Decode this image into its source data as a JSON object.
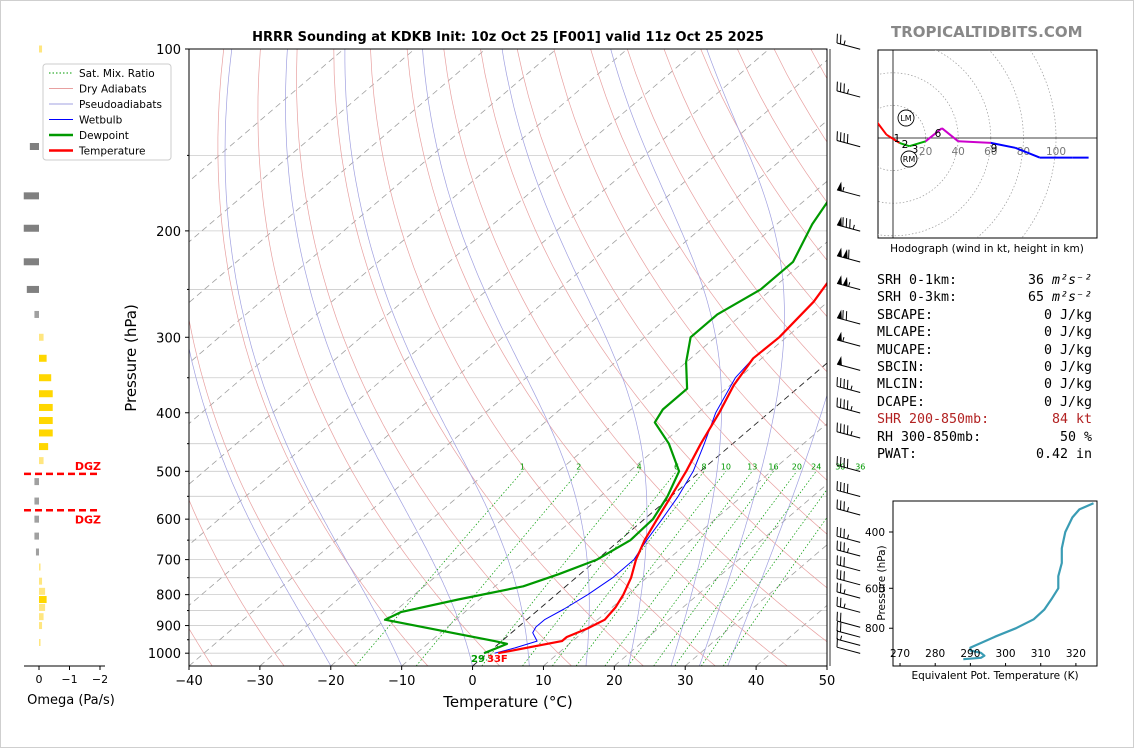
{
  "branding": "TROPICALTIDBITS.COM",
  "colors": {
    "temperature": "#ff0000",
    "dewpoint": "#009900",
    "wetbulb": "#0000ff",
    "dry_adiabats": "#e8a0a0",
    "pseudoadiabats": "#a0a0e0",
    "mixing_ratio": "#009900",
    "isotherms": "#a0a0a0",
    "dgz": "#ff0000",
    "theta_e": "#3a9cb4"
  },
  "chart_data": [
    {
      "type": "line",
      "subtype": "skew-t",
      "title": "HRRR Sounding at KDKB Init: 10z Oct 25 [F001] valid 11z Oct 25 2025",
      "xlabel": "Temperature (°C)",
      "ylabel": "Pressure (hPa)",
      "xlim": [
        -40,
        50
      ],
      "ylim": [
        1050,
        100
      ],
      "y_log": true,
      "x_ticks": [
        "−40",
        "−30",
        "−20",
        "−10",
        "0",
        "10",
        "20",
        "30",
        "40",
        "50"
      ],
      "y_ticks": [
        "100",
        "200",
        "300",
        "400",
        "500",
        "600",
        "700",
        "800",
        "900",
        "1000"
      ],
      "legend": [
        "Sat. Mix. Ratio",
        "Dry Adiabats",
        "Pseudoadiabats",
        "Wetbulb",
        "Dewpoint",
        "Temperature"
      ],
      "legend_position": "upper-left",
      "mixing_ratio_labels": [
        "1",
        "2",
        "4",
        "6",
        "8",
        "10",
        "13",
        "16",
        "20",
        "24",
        "30",
        "36"
      ],
      "surface_label": "29|33F",
      "series": [
        {
          "name": "Temperature",
          "points": [
            [
              1.5,
              1000
            ],
            [
              8.5,
              955
            ],
            [
              8.5,
              940
            ],
            [
              10,
              910
            ],
            [
              11,
              880
            ],
            [
              10.5,
              840
            ],
            [
              9.5,
              800
            ],
            [
              7.8,
              750
            ],
            [
              5.5,
              700
            ],
            [
              3.5,
              650
            ],
            [
              1.8,
              600
            ],
            [
              0,
              550
            ],
            [
              -2,
              500
            ],
            [
              -4.5,
              450
            ],
            [
              -7,
              400
            ],
            [
              -9.5,
              360
            ],
            [
              -11.2,
              325
            ],
            [
              -11,
              300
            ],
            [
              -12,
              262
            ],
            [
              -14.5,
              225
            ],
            [
              -14.5,
              200
            ],
            [
              -10.5,
              170
            ],
            [
              -6,
              145
            ],
            [
              -4,
              125
            ],
            [
              2,
              100
            ]
          ]
        },
        {
          "name": "Dewpoint",
          "points": [
            [
              -0.5,
              1000
            ],
            [
              0.5,
              980
            ],
            [
              1.2,
              965
            ],
            [
              -1,
              955
            ],
            [
              -20,
              880
            ],
            [
              -19,
              855
            ],
            [
              -13,
              815
            ],
            [
              -6,
              775
            ],
            [
              -3,
              740
            ],
            [
              0,
              700
            ],
            [
              1.5,
              650
            ],
            [
              1.2,
              600
            ],
            [
              -0.5,
              550
            ],
            [
              -3,
              500
            ],
            [
              -9,
              450
            ],
            [
              -14.5,
              415
            ],
            [
              -15.5,
              395
            ],
            [
              -15.5,
              365
            ],
            [
              -20,
              330
            ],
            [
              -23.5,
              300
            ],
            [
              -23.5,
              275
            ],
            [
              -21.5,
              250
            ],
            [
              -21.5,
              225
            ],
            [
              -25,
              195
            ],
            [
              -28,
              165
            ],
            [
              -30.5,
              145
            ],
            [
              -24.5,
              100
            ]
          ]
        },
        {
          "name": "Wetbulb",
          "points": [
            [
              1,
              1000
            ],
            [
              3,
              980
            ],
            [
              5,
              955
            ],
            [
              3,
              925
            ],
            [
              2.5,
              905
            ],
            [
              2.5,
              880
            ],
            [
              3.5,
              845
            ],
            [
              4.5,
              800
            ],
            [
              5.2,
              750
            ],
            [
              5.2,
              700
            ],
            [
              3.8,
              650
            ],
            [
              2.5,
              600
            ],
            [
              1,
              550
            ],
            [
              -1,
              500
            ],
            [
              -4,
              450
            ],
            [
              -7.5,
              400
            ],
            [
              -10.5,
              350
            ],
            [
              -11.2,
              325
            ],
            [
              -11,
              300
            ],
            [
              -12,
              262
            ],
            [
              -14.5,
              225
            ],
            [
              -14.5,
              200
            ]
          ]
        }
      ],
      "wind_barbs_kt": [
        [
          1000,
          10
        ],
        [
          970,
          15
        ],
        [
          940,
          20
        ],
        [
          905,
          20
        ],
        [
          855,
          25
        ],
        [
          810,
          25
        ],
        [
          770,
          30
        ],
        [
          730,
          30
        ],
        [
          690,
          35
        ],
        [
          655,
          35
        ],
        [
          590,
          35
        ],
        [
          550,
          40
        ],
        [
          500,
          40
        ],
        [
          440,
          45
        ],
        [
          400,
          45
        ],
        [
          370,
          45
        ],
        [
          340,
          50
        ],
        [
          310,
          55
        ],
        [
          285,
          70
        ],
        [
          250,
          105
        ],
        [
          225,
          110
        ],
        [
          200,
          85
        ],
        [
          175,
          55
        ],
        [
          145,
          40
        ],
        [
          120,
          35
        ],
        [
          100,
          25
        ]
      ]
    },
    {
      "type": "line",
      "subtype": "omega-profile",
      "xlabel": "Omega (Pa/s)",
      "x_ticks": [
        "0",
        "−1",
        "−2"
      ],
      "xlim": [
        0.3,
        -2.6
      ],
      "dgz_label": "DGZ",
      "dgz_pressures": [
        505,
        580
      ],
      "bars": [
        [
          100,
          -0.1
        ],
        [
          145,
          0.3
        ],
        [
          175,
          0.5
        ],
        [
          198,
          0.5
        ],
        [
          225,
          0.5
        ],
        [
          250,
          0.4
        ],
        [
          275,
          0.15
        ],
        [
          300,
          -0.15
        ],
        [
          325,
          -0.25
        ],
        [
          350,
          -0.4
        ],
        [
          372,
          -0.45
        ],
        [
          392,
          -0.45
        ],
        [
          412,
          -0.45
        ],
        [
          432,
          -0.45
        ],
        [
          455,
          -0.3
        ],
        [
          480,
          -0.15
        ],
        [
          520,
          0.15
        ],
        [
          560,
          0.15
        ],
        [
          600,
          0.15
        ],
        [
          640,
          0.15
        ],
        [
          680,
          0.1
        ],
        [
          720,
          -0.05
        ],
        [
          760,
          -0.1
        ],
        [
          790,
          -0.2
        ],
        [
          815,
          -0.25
        ],
        [
          840,
          -0.2
        ],
        [
          870,
          -0.15
        ],
        [
          900,
          -0.1
        ],
        [
          960,
          -0.05
        ]
      ]
    },
    {
      "type": "line",
      "subtype": "hodograph",
      "xlabel": "Hodograph (wind in kt, height in km)",
      "ring_labels": [
        "20",
        "40",
        "60",
        "80",
        "100"
      ],
      "point_labels": [
        "1",
        "2",
        "3",
        "6",
        "9"
      ],
      "storm_markers": [
        "LM",
        "RM"
      ],
      "uv_kt": [
        [
          -10,
          10
        ],
        [
          -4,
          2
        ],
        [
          4,
          -3
        ],
        [
          10,
          -5
        ],
        [
          20,
          -2
        ],
        [
          30,
          6
        ],
        [
          40,
          -2
        ],
        [
          60,
          -3
        ],
        [
          75,
          -6
        ],
        [
          90,
          -12
        ],
        [
          100,
          -12
        ],
        [
          110,
          -12
        ],
        [
          120,
          -12
        ]
      ]
    },
    {
      "type": "line",
      "subtype": "theta-e-profile",
      "xlabel": "Equivalent Pot. Temperature (K)",
      "ylabel": "Pressure (hPa)",
      "x_ticks": [
        "270",
        "280",
        "290",
        "300",
        "310",
        "320"
      ],
      "y_ticks": [
        "400",
        "600",
        "800"
      ],
      "xlim": [
        268,
        326
      ],
      "ylim": [
        1050,
        320
      ],
      "points": [
        [
          288,
          1000
        ],
        [
          293,
          990
        ],
        [
          294,
          975
        ],
        [
          293,
          955
        ],
        [
          290,
          940
        ],
        [
          290,
          920
        ],
        [
          293,
          890
        ],
        [
          297,
          850
        ],
        [
          303,
          800
        ],
        [
          308,
          750
        ],
        [
          311,
          700
        ],
        [
          313,
          650
        ],
        [
          315,
          600
        ],
        [
          315,
          550
        ],
        [
          316,
          500
        ],
        [
          316,
          450
        ],
        [
          317,
          400
        ],
        [
          319,
          360
        ],
        [
          321,
          340
        ],
        [
          325,
          325
        ]
      ]
    }
  ],
  "stats": [
    {
      "label": "SRH 0-1km:",
      "value": "36 m²s⁻²",
      "num": "36",
      "unit": "m²s⁻²"
    },
    {
      "label": "SRH 0-3km:",
      "value": "65 m²s⁻²",
      "num": "65",
      "unit": "m²s⁻²"
    },
    {
      "label": "SBCAPE:",
      "value": "0 J/kg"
    },
    {
      "label": "MLCAPE:",
      "value": "0 J/kg"
    },
    {
      "label": "MUCAPE:",
      "value": "0 J/kg"
    },
    {
      "label": "SBCIN:",
      "value": "0 J/kg"
    },
    {
      "label": "MLCIN:",
      "value": "0 J/kg"
    },
    {
      "label": "DCAPE:",
      "value": "0 J/kg"
    },
    {
      "label": "SHR 200-850mb:",
      "value": "84 kt",
      "highlight": true
    },
    {
      "label": "RH 300-850mb:",
      "value": "50 %"
    },
    {
      "label": "PWAT:",
      "value": "0.42 in"
    }
  ]
}
